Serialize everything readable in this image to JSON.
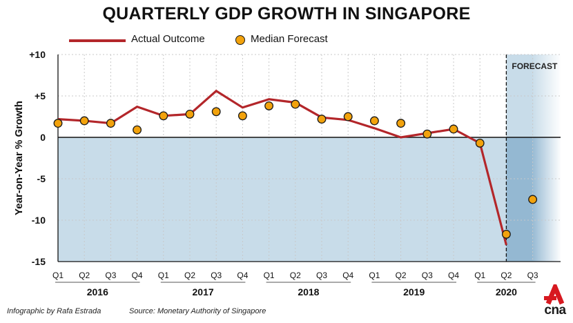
{
  "chart_data": {
    "type": "line",
    "title": "QUARTERLY GDP GROWTH IN SINGAPORE",
    "ylabel": "Year-on-Year % Growth",
    "xlabel": "",
    "ylim": [
      -15,
      10
    ],
    "yticks": [
      10,
      5,
      0,
      -5,
      -10,
      -15
    ],
    "ytick_labels": [
      "+10",
      "+5",
      "0",
      "-5",
      "-10",
      "-15"
    ],
    "quarters": [
      "Q1",
      "Q2",
      "Q3",
      "Q4",
      "Q1",
      "Q2",
      "Q3",
      "Q4",
      "Q1",
      "Q2",
      "Q3",
      "Q4",
      "Q1",
      "Q2",
      "Q3",
      "Q4",
      "Q1",
      "Q2",
      "Q3"
    ],
    "years": [
      {
        "label": "2016",
        "start": 0,
        "end": 3
      },
      {
        "label": "2017",
        "start": 4,
        "end": 7
      },
      {
        "label": "2018",
        "start": 8,
        "end": 11
      },
      {
        "label": "2019",
        "start": 12,
        "end": 15
      },
      {
        "label": "2020",
        "start": 16,
        "end": 18
      }
    ],
    "series": [
      {
        "name": "Actual Outcome",
        "kind": "line",
        "color": "#b3262a",
        "values": [
          2.2,
          2.0,
          1.7,
          3.7,
          2.6,
          2.8,
          5.6,
          3.6,
          4.6,
          4.2,
          2.4,
          2.1,
          1.1,
          0.0,
          0.5,
          1.0,
          -0.7,
          -13.0,
          null
        ]
      },
      {
        "name": "Median Forecast",
        "kind": "scatter",
        "color": "#f2a20c",
        "values": [
          1.7,
          2.0,
          1.7,
          0.9,
          2.6,
          2.8,
          3.1,
          2.6,
          3.8,
          4.0,
          2.2,
          2.5,
          2.0,
          1.7,
          0.4,
          1.0,
          -0.7,
          -11.7,
          -7.5
        ]
      }
    ],
    "forecast_label": "FORECAST",
    "forecast_from_index": 17,
    "colors": {
      "negative_area": "#c8dce9",
      "forecast_area": "#94b8d2",
      "grid": "#c9c9c9",
      "axis": "#111111"
    }
  },
  "legend": {
    "actual_label": "Actual Outcome",
    "forecast_label": "Median Forecast"
  },
  "footer": {
    "credit": "Infographic by Rafa Estrada",
    "source": "Source: Monetary Authority of Singapore"
  },
  "logo": {
    "text": "cna"
  }
}
